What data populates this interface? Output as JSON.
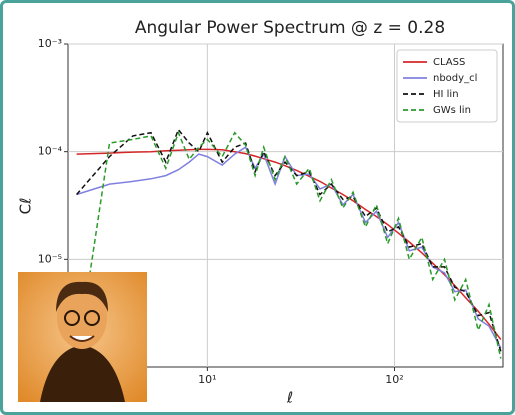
{
  "chart_data": {
    "type": "line",
    "title": "Angular Power Spectrum @ z = 0.28",
    "x_label": "ℓ",
    "y_label": "Cℓ",
    "xscale": "log",
    "yscale": "log",
    "grid": true,
    "legend": "upper right",
    "xlim": [
      1.8,
      380
    ],
    "ylim": [
      1e-06,
      0.001
    ],
    "xticks": [
      {
        "value": 10,
        "label": "10¹"
      },
      {
        "value": 100,
        "label": "10²"
      }
    ],
    "yticks": [
      {
        "value": 1e-05,
        "label": "10⁻⁵"
      },
      {
        "value": 0.0001,
        "label": "10⁻⁴"
      },
      {
        "value": 0.001,
        "label": "10⁻³"
      }
    ],
    "x": [
      2,
      3,
      4,
      5,
      6,
      7,
      8,
      9,
      10,
      12,
      14,
      16,
      18,
      20,
      23,
      26,
      30,
      35,
      40,
      46,
      53,
      60,
      70,
      80,
      92,
      105,
      120,
      140,
      160,
      185,
      210,
      240,
      280,
      320,
      370
    ],
    "series": [
      {
        "name": "CLASS",
        "color": "#d62728",
        "linestyle": "solid",
        "values": [
          9.5e-05,
          9.7e-05,
          9.9e-05,
          0.0001,
          0.000102,
          0.000103,
          0.000104,
          0.000105,
          0.000105,
          0.000104,
          0.0001,
          9.6e-05,
          9.1e-05,
          8.6e-05,
          8e-05,
          7.4e-05,
          6.7e-05,
          5.9e-05,
          5.3e-05,
          4.6e-05,
          4e-05,
          3.5e-05,
          2.9e-05,
          2.5e-05,
          2.1e-05,
          1.75e-05,
          1.45e-05,
          1.15e-05,
          9.2e-06,
          7.2e-06,
          5.7e-06,
          4.4e-06,
          3.3e-06,
          2.5e-06,
          1.8e-06
        ]
      },
      {
        "name": "nbody_cl",
        "color": "#8080e0",
        "linestyle": "solid",
        "values": [
          4e-05,
          5e-05,
          5.3e-05,
          5.6e-05,
          6e-05,
          6.8e-05,
          8e-05,
          9.5e-05,
          9e-05,
          7.5e-05,
          9.5e-05,
          0.00011,
          7e-05,
          9.5e-05,
          5e-05,
          9e-05,
          6e-05,
          6.2e-05,
          4.5e-05,
          5e-05,
          3.2e-05,
          4e-05,
          2.2e-05,
          2.8e-05,
          1.6e-05,
          2.2e-05,
          1.2e-05,
          1.3e-05,
          8.5e-06,
          7.5e-06,
          5e-06,
          5.2e-06,
          2.8e-06,
          2.4e-06,
          1.5e-06
        ]
      },
      {
        "name": "HI lin",
        "color": "#111111",
        "linestyle": "dashed",
        "values": [
          4e-05,
          9e-05,
          0.00014,
          0.00015,
          8e-05,
          0.00016,
          0.00012,
          0.0001,
          0.00015,
          8e-05,
          0.00011,
          0.00012,
          6.5e-05,
          0.0001,
          6e-05,
          8e-05,
          6e-05,
          6.5e-05,
          4e-05,
          5e-05,
          3.6e-05,
          3.8e-05,
          2.5e-05,
          3e-05,
          1.8e-05,
          2e-05,
          1.3e-05,
          1.4e-05,
          8.5e-06,
          8.5e-06,
          5.5e-06,
          5e-06,
          3e-06,
          3.2e-06,
          1.4e-06
        ]
      },
      {
        "name": "GWs lin",
        "color": "#2a9a2a",
        "linestyle": "dashed",
        "values": [
          1.1e-06,
          0.00012,
          0.00013,
          0.00014,
          7e-05,
          0.00015,
          8.5e-05,
          0.00011,
          0.00013,
          9e-05,
          0.00015,
          0.000115,
          6e-05,
          0.00011,
          5.5e-05,
          9e-05,
          5e-05,
          7e-05,
          3.5e-05,
          5.5e-05,
          3e-05,
          4.2e-05,
          2e-05,
          3.2e-05,
          1.4e-05,
          2.4e-05,
          1e-05,
          1.6e-05,
          6.5e-06,
          1e-05,
          4.2e-06,
          6.5e-06,
          2.2e-06,
          3.8e-06,
          1.2e-06
        ]
      }
    ]
  }
}
